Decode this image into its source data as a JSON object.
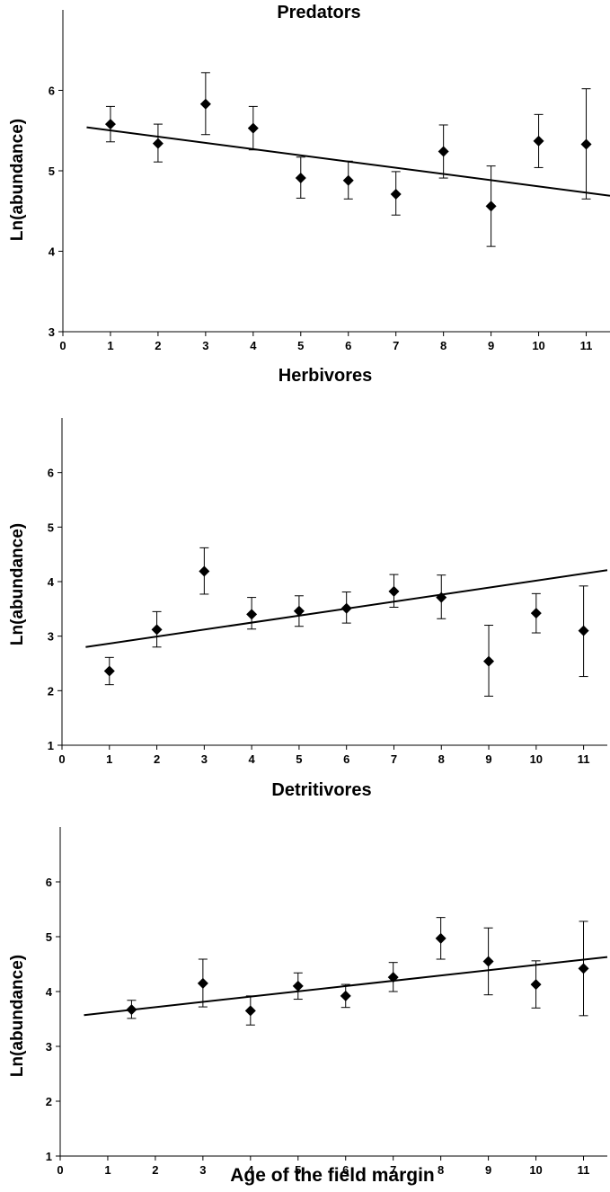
{
  "chart_data": [
    {
      "type": "scatter",
      "title": "Predators",
      "xlabel": "",
      "ylabel": "Ln(abundance)",
      "xlim": [
        0,
        11.5
      ],
      "ylim": [
        3,
        7
      ],
      "x_ticks": [
        "0",
        "1",
        "2",
        "3",
        "4",
        "5",
        "6",
        "7",
        "8",
        "9",
        "10",
        "11"
      ],
      "y_ticks": [
        "3",
        "4",
        "5",
        "6"
      ],
      "grid": false,
      "points": [
        {
          "x": 1,
          "y": 5.58,
          "err_low": 5.36,
          "err_high": 5.8
        },
        {
          "x": 2,
          "y": 5.34,
          "err_low": 5.11,
          "err_high": 5.58
        },
        {
          "x": 3,
          "y": 5.83,
          "err_low": 5.45,
          "err_high": 6.22
        },
        {
          "x": 4,
          "y": 5.53,
          "err_low": 5.26,
          "err_high": 5.8
        },
        {
          "x": 5,
          "y": 4.91,
          "err_low": 4.66,
          "err_high": 5.17
        },
        {
          "x": 6,
          "y": 4.88,
          "err_low": 4.65,
          "err_high": 5.12
        },
        {
          "x": 7,
          "y": 4.71,
          "err_low": 4.45,
          "err_high": 4.99
        },
        {
          "x": 8,
          "y": 5.24,
          "err_low": 4.91,
          "err_high": 5.57
        },
        {
          "x": 9,
          "y": 4.56,
          "err_low": 4.06,
          "err_high": 5.06
        },
        {
          "x": 10,
          "y": 5.37,
          "err_low": 5.04,
          "err_high": 5.7
        },
        {
          "x": 11,
          "y": 5.33,
          "err_low": 4.65,
          "err_high": 6.02
        }
      ],
      "trendline": {
        "x": [
          0.5,
          11.5
        ],
        "y": [
          5.54,
          4.69
        ]
      }
    },
    {
      "type": "scatter",
      "title": "Herbivores",
      "xlabel": "",
      "ylabel": "Ln(abundance)",
      "xlim": [
        0,
        11.5
      ],
      "ylim": [
        1,
        7
      ],
      "x_ticks": [
        "0",
        "1",
        "2",
        "3",
        "4",
        "5",
        "6",
        "7",
        "8",
        "9",
        "10",
        "11"
      ],
      "y_ticks": [
        "1",
        "2",
        "3",
        "4",
        "5",
        "6"
      ],
      "grid": false,
      "points": [
        {
          "x": 1,
          "y": 2.36,
          "err_low": 2.11,
          "err_high": 2.61
        },
        {
          "x": 2,
          "y": 3.12,
          "err_low": 2.8,
          "err_high": 3.45
        },
        {
          "x": 3,
          "y": 4.19,
          "err_low": 3.77,
          "err_high": 4.62
        },
        {
          "x": 4,
          "y": 3.4,
          "err_low": 3.13,
          "err_high": 3.71
        },
        {
          "x": 5,
          "y": 3.46,
          "err_low": 3.18,
          "err_high": 3.74
        },
        {
          "x": 6,
          "y": 3.51,
          "err_low": 3.24,
          "err_high": 3.81
        },
        {
          "x": 7,
          "y": 3.82,
          "err_low": 3.53,
          "err_high": 4.13
        },
        {
          "x": 8,
          "y": 3.71,
          "err_low": 3.32,
          "err_high": 4.12
        },
        {
          "x": 9,
          "y": 2.54,
          "err_low": 1.9,
          "err_high": 3.2
        },
        {
          "x": 10,
          "y": 3.42,
          "err_low": 3.06,
          "err_high": 3.78
        },
        {
          "x": 11,
          "y": 3.1,
          "err_low": 2.26,
          "err_high": 3.92
        }
      ],
      "trendline": {
        "x": [
          0.5,
          11.5
        ],
        "y": [
          2.8,
          4.21
        ]
      }
    },
    {
      "type": "scatter",
      "title": "Detritivores",
      "xlabel": "Age of the field margin",
      "ylabel": "Ln(abundance)",
      "xlim": [
        0,
        11.5
      ],
      "ylim": [
        1,
        7
      ],
      "x_ticks": [
        "0",
        "1",
        "2",
        "3",
        "4",
        "5",
        "6",
        "7",
        "8",
        "9",
        "10",
        "11"
      ],
      "y_ticks": [
        "1",
        "2",
        "3",
        "4",
        "5",
        "6"
      ],
      "grid": false,
      "points": [
        {
          "x": 1.5,
          "y": 3.67,
          "err_low": 3.51,
          "err_high": 3.84
        },
        {
          "x": 3,
          "y": 4.15,
          "err_low": 3.72,
          "err_high": 4.59
        },
        {
          "x": 4,
          "y": 3.65,
          "err_low": 3.39,
          "err_high": 3.92
        },
        {
          "x": 5,
          "y": 4.1,
          "err_low": 3.86,
          "err_high": 4.34
        },
        {
          "x": 6,
          "y": 3.92,
          "err_low": 3.71,
          "err_high": 4.13
        },
        {
          "x": 7,
          "y": 4.26,
          "err_low": 4.0,
          "err_high": 4.53
        },
        {
          "x": 8,
          "y": 4.97,
          "err_low": 4.59,
          "err_high": 5.35
        },
        {
          "x": 9,
          "y": 4.55,
          "err_low": 3.94,
          "err_high": 5.16
        },
        {
          "x": 10,
          "y": 4.13,
          "err_low": 3.7,
          "err_high": 4.56
        },
        {
          "x": 11,
          "y": 4.42,
          "err_low": 3.56,
          "err_high": 5.28
        }
      ],
      "trendline": {
        "x": [
          0.5,
          11.5
        ],
        "y": [
          3.57,
          4.63
        ]
      }
    }
  ],
  "colors": {
    "marker": "#000000",
    "line": "#000000",
    "background": "#ffffff"
  }
}
